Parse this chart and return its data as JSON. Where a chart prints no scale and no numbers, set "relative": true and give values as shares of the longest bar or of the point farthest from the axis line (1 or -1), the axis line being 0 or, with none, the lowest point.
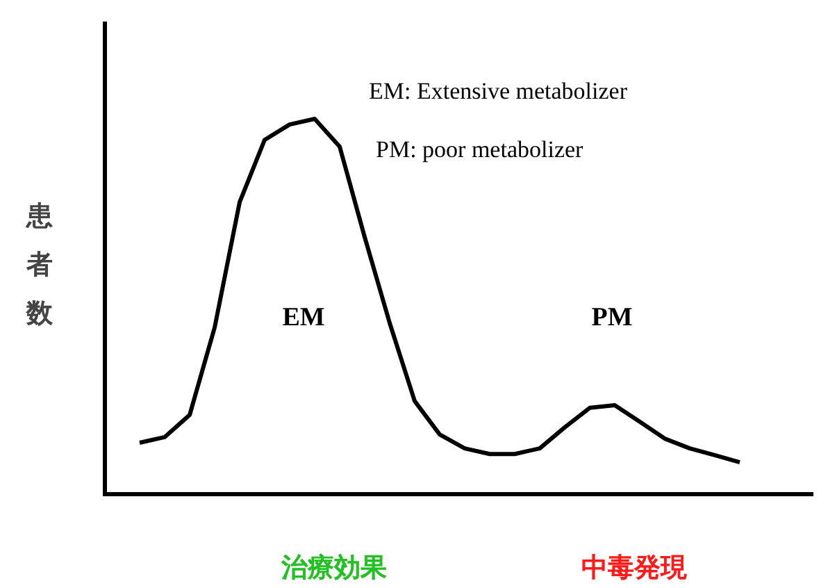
{
  "chart_data": {
    "type": "line",
    "relative": true,
    "ylabel": "患者数",
    "categories": [
      null,
      null,
      null,
      null,
      null,
      null,
      null,
      null,
      null,
      null,
      null,
      null,
      null,
      null,
      null,
      null,
      null,
      null,
      null,
      null,
      null,
      null,
      null,
      null,
      null
    ],
    "series": [
      {
        "color": "#000000",
        "values": [
          0.137,
          0.152,
          0.211,
          0.444,
          0.778,
          0.944,
          0.985,
          1,
          0.926,
          0.685,
          0.456,
          0.248,
          0.159,
          0.122,
          0.107,
          0.107,
          0.122,
          0.178,
          0.23,
          0.237,
          0.193,
          0.148,
          0.122,
          0.104,
          0.085
        ]
      }
    ],
    "annotations": [
      "EM: Extensive metabolizer",
      "PM: poor metabolizer",
      "EM",
      "PM",
      "治療効果",
      "中毒発現"
    ],
    "marker": "none",
    "line_style": "solid"
  }
}
